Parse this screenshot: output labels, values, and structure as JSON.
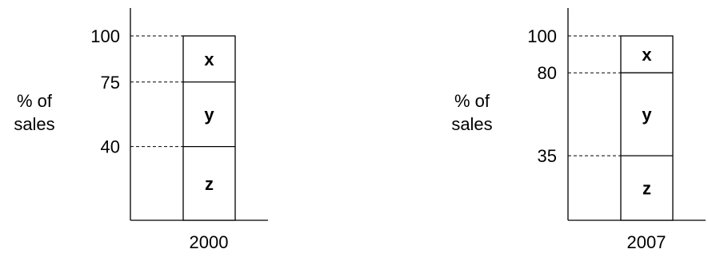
{
  "chart_data": [
    {
      "type": "bar",
      "stacked": true,
      "category": "2000",
      "ylabel": [
        "% of",
        "sales"
      ],
      "ylim": [
        0,
        100
      ],
      "boundaries": [
        40,
        75,
        100
      ],
      "tick_labels": [
        "100",
        "75",
        "40"
      ],
      "segments": [
        {
          "name": "z",
          "from": 0,
          "to": 40
        },
        {
          "name": "y",
          "from": 40,
          "to": 75
        },
        {
          "name": "x",
          "from": 75,
          "to": 100
        }
      ]
    },
    {
      "type": "bar",
      "stacked": true,
      "category": "2007",
      "ylabel": [
        "% of",
        "sales"
      ],
      "ylim": [
        0,
        100
      ],
      "boundaries": [
        35,
        80,
        100
      ],
      "tick_labels": [
        "100",
        "80",
        "35"
      ],
      "segments": [
        {
          "name": "z",
          "from": 0,
          "to": 35
        },
        {
          "name": "y",
          "from": 35,
          "to": 80
        },
        {
          "name": "x",
          "from": 80,
          "to": 100
        }
      ]
    }
  ]
}
